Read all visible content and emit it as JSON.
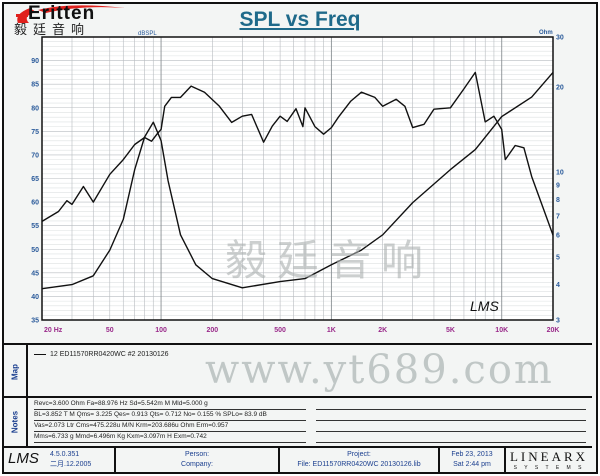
{
  "title": "SPL vs Freq",
  "logo": {
    "text_en": "Eritten",
    "text_cn": "毅廷音响"
  },
  "watermarks": {
    "cn": "毅廷音响",
    "url": "www.yt689.com",
    "lms_badge": "LMS"
  },
  "chart_data": {
    "type": "line",
    "title": "SPL vs Freq",
    "x_scale": "log",
    "xlim": [
      20,
      20000
    ],
    "x_ticks": [
      20,
      50,
      100,
      200,
      500,
      1000,
      2000,
      5000,
      10000,
      20000
    ],
    "x_tick_labels": [
      "20  Hz",
      "50",
      "100",
      "200",
      "500",
      "1K",
      "2K",
      "5K",
      "10K",
      "20K"
    ],
    "ylabel_left": "dBSPL",
    "ylim_left": [
      35,
      95
    ],
    "y_ticks_left": [
      35,
      40,
      45,
      50,
      55,
      60,
      65,
      70,
      75,
      80,
      85,
      90
    ],
    "ylabel_right": "Ohm",
    "ylim_right": [
      3,
      30
    ],
    "y_scale_right": "log",
    "y_ticks_right": [
      3,
      4,
      5,
      6,
      7,
      8,
      9,
      10,
      20,
      30
    ],
    "grid": true,
    "series": [
      {
        "axis": "left",
        "unit": "dBSPL",
        "x": [
          20,
          25,
          28,
          30,
          35,
          40,
          50,
          60,
          70,
          80,
          88,
          95,
          100,
          105,
          115,
          130,
          150,
          180,
          220,
          260,
          300,
          340,
          400,
          450,
          500,
          550,
          620,
          680,
          700,
          800,
          900,
          1000,
          1100,
          1300,
          1500,
          1800,
          2000,
          2400,
          2700,
          3000,
          3500,
          4000,
          5000,
          6000,
          7000,
          8000,
          9000,
          10000,
          10500,
          12000,
          13500,
          15000,
          17000,
          20000
        ],
        "y": [
          55.9,
          58,
          60.3,
          59.5,
          63.3,
          60,
          65.9,
          69,
          72.2,
          73.7,
          72.9,
          74.5,
          75.4,
          80.3,
          82.2,
          82.2,
          84.6,
          83.3,
          80.3,
          76.9,
          78.2,
          78.6,
          72.7,
          76.1,
          78.2,
          77.1,
          79.8,
          76,
          80,
          76,
          74.4,
          75.8,
          78,
          81.4,
          83.3,
          82.2,
          80.3,
          81.8,
          80.3,
          75.8,
          76.5,
          79.7,
          80,
          84,
          87.5,
          77,
          78.2,
          75.4,
          69,
          72,
          71.5,
          65.4,
          60,
          53
        ]
      },
      {
        "axis": "right",
        "unit": "Ohm",
        "x": [
          20,
          30,
          40,
          50,
          60,
          70,
          80,
          90,
          100,
          110,
          130,
          160,
          200,
          300,
          500,
          700,
          1000,
          1500,
          2000,
          3000,
          5000,
          7000,
          10000,
          15000,
          20000
        ],
        "y": [
          3.87,
          4.0,
          4.3,
          5.3,
          6.8,
          10.2,
          13.3,
          15.0,
          12.9,
          9.3,
          6.0,
          4.7,
          4.2,
          3.9,
          4.1,
          4.2,
          4.7,
          5.3,
          6.0,
          7.8,
          10.2,
          12.0,
          15.7,
          18.4,
          22.5
        ]
      }
    ]
  },
  "map": {
    "label": "Map",
    "legend": "12  ED11570RR0420WC #2 20130126"
  },
  "notes": {
    "label": "Notes",
    "lines": [
      "Revc=3.600 Ohm  Fa=88.976 Hz  Sd=5.542m M  Mld=5.000 g",
      "BL=3.852 T M  Qms= 3.225  Qes= 0.913  Qts= 0.712  No= 0.155 %  SPLo= 83.9 dB",
      "Vas=2.073 Ltr  Cms=475.228u M/N  Krm=203.686u Ohm  Erm=0.957",
      "Mms=6.733 g  Mmd=6.496m Kg  Kxm=3.097m H  Exm=0.742"
    ]
  },
  "footer": {
    "lms": "LMS",
    "version": "4.5.0.351",
    "version_date": "二月.12.2005",
    "person": "Person:",
    "company": "Company:",
    "project": "Project:",
    "file": "File: ED11570RR0420WC 20130126.lib",
    "date": "Feb 23, 2013",
    "time": "Sat  2:44 pm",
    "brand": "LINEARX",
    "brand_sub": "S Y S T E M S"
  },
  "colors": {
    "title": "#1f6a8a",
    "axis_left_labels": "#2a5a9a",
    "x_labels": "#9a2a8a",
    "curve": "#111111",
    "logo_red": "#e0201c"
  }
}
